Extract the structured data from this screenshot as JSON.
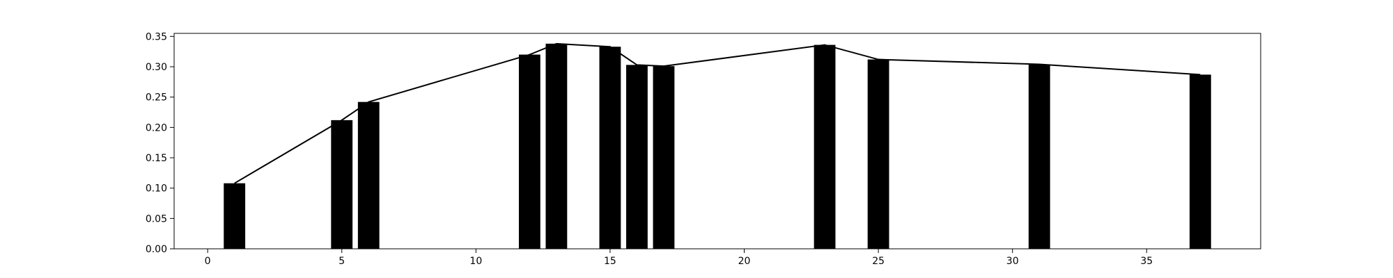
{
  "chart_data": {
    "type": "bar",
    "title": "",
    "xlabel": "",
    "ylabel": "",
    "xlim": [
      -1.25,
      39.25
    ],
    "ylim": [
      0,
      0.355
    ],
    "x_ticks": [
      0,
      5,
      10,
      15,
      20,
      25,
      30,
      35
    ],
    "x_tick_labels": [
      "0",
      "5",
      "10",
      "15",
      "20",
      "25",
      "30",
      "35"
    ],
    "y_ticks": [
      0.0,
      0.05,
      0.1,
      0.15,
      0.2,
      0.25,
      0.3,
      0.35
    ],
    "y_tick_labels": [
      "0.00",
      "0.05",
      "0.10",
      "0.15",
      "0.20",
      "0.25",
      "0.30",
      "0.35"
    ],
    "grid": false,
    "bar_width": 0.8,
    "x": [
      1,
      5,
      6,
      12,
      13,
      15,
      16,
      17,
      23,
      25,
      31,
      37
    ],
    "values": [
      0.108,
      0.212,
      0.242,
      0.32,
      0.338,
      0.333,
      0.303,
      0.301,
      0.336,
      0.312,
      0.304,
      0.287
    ],
    "line": {
      "x": [
        1,
        5,
        6,
        12,
        13,
        15,
        16,
        17,
        23,
        25,
        31,
        37
      ],
      "y": [
        0.108,
        0.212,
        0.242,
        0.32,
        0.338,
        0.333,
        0.303,
        0.301,
        0.336,
        0.312,
        0.304,
        0.287
      ]
    },
    "colors": {
      "bars": "#000000",
      "line": "#000000"
    }
  }
}
